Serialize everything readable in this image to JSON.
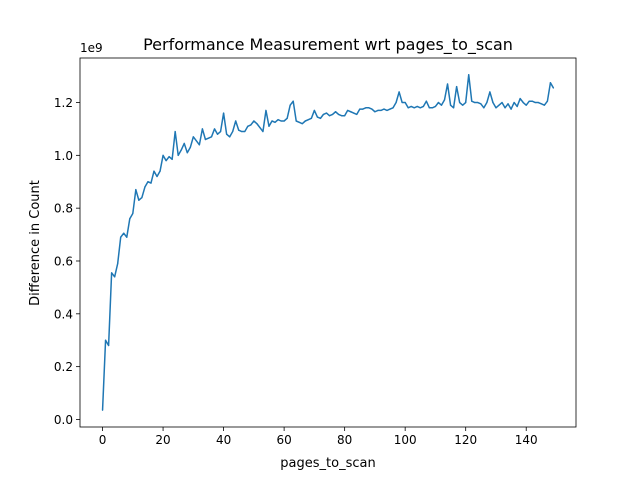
{
  "chart_data": {
    "type": "line",
    "title": "Performance Measurement wrt pages_to_scan",
    "xlabel": "pages_to_scan",
    "ylabel": "Difference in Count",
    "y_offset_label": "1e9",
    "xlim": [
      -7.45,
      156.45
    ],
    "ylim": [
      -0.0285,
      1.3685
    ],
    "x_ticks": [
      0,
      20,
      40,
      60,
      80,
      100,
      120,
      140
    ],
    "x_tick_labels": [
      "0",
      "20",
      "40",
      "60",
      "80",
      "100",
      "120",
      "140"
    ],
    "y_ticks": [
      0.0,
      0.2,
      0.4,
      0.6,
      0.8,
      1.0,
      1.2
    ],
    "y_tick_labels": [
      "0.0",
      "0.2",
      "0.4",
      "0.6",
      "0.8",
      "1.0",
      "1.2"
    ],
    "grid": false,
    "legend": "none",
    "series": [
      {
        "color": "#1f77b4",
        "x": [
          0,
          1,
          2,
          3,
          4,
          5,
          6,
          7,
          8,
          9,
          10,
          11,
          12,
          13,
          14,
          15,
          16,
          17,
          18,
          19,
          20,
          21,
          22,
          23,
          24,
          25,
          26,
          27,
          28,
          29,
          30,
          31,
          32,
          33,
          34,
          35,
          36,
          37,
          38,
          39,
          40,
          41,
          42,
          43,
          44,
          45,
          46,
          47,
          48,
          49,
          50,
          51,
          52,
          53,
          54,
          55,
          56,
          57,
          58,
          59,
          60,
          61,
          62,
          63,
          64,
          65,
          66,
          67,
          68,
          69,
          70,
          71,
          72,
          73,
          74,
          75,
          76,
          77,
          78,
          79,
          80,
          81,
          82,
          83,
          84,
          85,
          86,
          87,
          88,
          89,
          90,
          91,
          92,
          93,
          94,
          95,
          96,
          97,
          98,
          99,
          100,
          101,
          102,
          103,
          104,
          105,
          106,
          107,
          108,
          109,
          110,
          111,
          112,
          113,
          114,
          115,
          116,
          117,
          118,
          119,
          120,
          121,
          122,
          123,
          124,
          125,
          126,
          127,
          128,
          129,
          130,
          131,
          132,
          133,
          134,
          135,
          136,
          137,
          138,
          139,
          140,
          141,
          142,
          143,
          144,
          145,
          146,
          147,
          148,
          149
        ],
        "y": [
          0.035,
          0.3,
          0.28,
          0.555,
          0.54,
          0.59,
          0.69,
          0.705,
          0.69,
          0.76,
          0.78,
          0.87,
          0.83,
          0.84,
          0.88,
          0.9,
          0.895,
          0.94,
          0.92,
          0.94,
          1.0,
          0.98,
          0.995,
          0.985,
          1.09,
          1.0,
          1.02,
          1.045,
          1.01,
          1.03,
          1.07,
          1.055,
          1.04,
          1.1,
          1.06,
          1.065,
          1.07,
          1.1,
          1.08,
          1.09,
          1.16,
          1.08,
          1.07,
          1.09,
          1.13,
          1.095,
          1.09,
          1.09,
          1.11,
          1.115,
          1.13,
          1.12,
          1.105,
          1.09,
          1.17,
          1.11,
          1.13,
          1.125,
          1.135,
          1.13,
          1.13,
          1.14,
          1.19,
          1.205,
          1.13,
          1.125,
          1.12,
          1.13,
          1.135,
          1.14,
          1.17,
          1.145,
          1.14,
          1.155,
          1.16,
          1.15,
          1.155,
          1.165,
          1.155,
          1.15,
          1.15,
          1.17,
          1.165,
          1.16,
          1.155,
          1.175,
          1.175,
          1.18,
          1.18,
          1.175,
          1.165,
          1.17,
          1.17,
          1.175,
          1.17,
          1.175,
          1.18,
          1.2,
          1.24,
          1.2,
          1.2,
          1.18,
          1.185,
          1.18,
          1.185,
          1.18,
          1.185,
          1.205,
          1.18,
          1.18,
          1.185,
          1.2,
          1.19,
          1.21,
          1.27,
          1.19,
          1.18,
          1.26,
          1.2,
          1.19,
          1.2,
          1.305,
          1.205,
          1.2,
          1.2,
          1.195,
          1.18,
          1.2,
          1.24,
          1.2,
          1.18,
          1.19,
          1.2,
          1.18,
          1.195,
          1.175,
          1.2,
          1.185,
          1.215,
          1.2,
          1.19,
          1.205,
          1.205,
          1.2,
          1.2,
          1.195,
          1.19,
          1.205,
          1.275,
          1.255
        ]
      }
    ]
  }
}
